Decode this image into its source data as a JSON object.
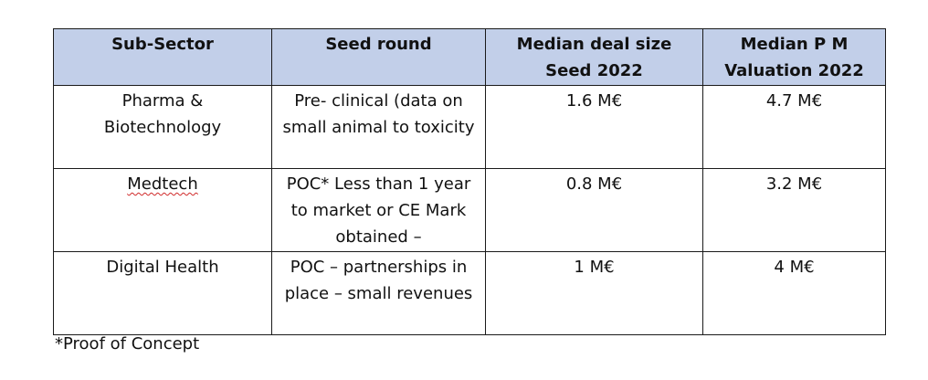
{
  "table": {
    "headers": [
      "Sub-Sector",
      "Seed round",
      "Median deal size Seed 2022",
      "Median P M Valuation 2022"
    ],
    "rows": [
      {
        "sub_sector": "Pharma & Biotechnology",
        "seed_round": "Pre- clinical (data on small animal to toxicity",
        "median_deal_size": "1.6 M€",
        "median_valuation": "4.7 M€"
      },
      {
        "sub_sector": "Medtech",
        "seed_round": "POC* Less than 1 year to market or CE Mark obtained –",
        "median_deal_size": "0.8 M€",
        "median_valuation": "3.2 M€"
      },
      {
        "sub_sector": "Digital Health",
        "seed_round": "POC – partnerships in place – small revenues",
        "median_deal_size": "1 M€",
        "median_valuation": "4 M€"
      }
    ]
  },
  "footnote": "*Proof of Concept"
}
